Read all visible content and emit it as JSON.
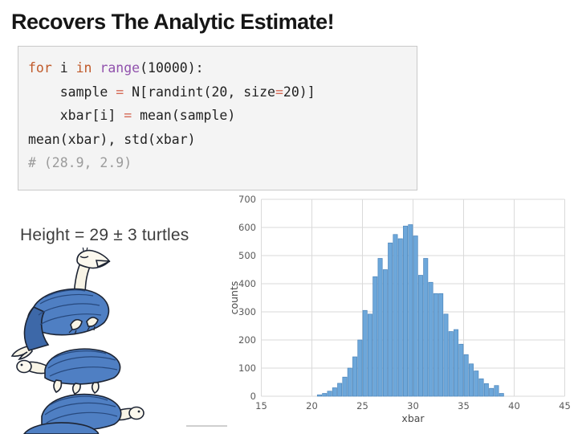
{
  "slide": {
    "title": "Recovers The Analytic Estimate!",
    "annotation": "Height = 29 ± 3 turtles"
  },
  "code_block": {
    "lines": [
      [
        {
          "t": "for",
          "c": "kw"
        },
        {
          "t": " i ",
          "c": "plain"
        },
        {
          "t": "in",
          "c": "kw"
        },
        {
          "t": " ",
          "c": "plain"
        },
        {
          "t": "range",
          "c": "fn"
        },
        {
          "t": "(10000):",
          "c": "plain"
        }
      ],
      [
        {
          "t": "    sample ",
          "c": "plain"
        },
        {
          "t": "=",
          "c": "op"
        },
        {
          "t": " N[randint(20, size",
          "c": "plain"
        },
        {
          "t": "=",
          "c": "op"
        },
        {
          "t": "20)]",
          "c": "plain"
        }
      ],
      [
        {
          "t": "    xbar[i] ",
          "c": "plain"
        },
        {
          "t": "=",
          "c": "op"
        },
        {
          "t": " mean(sample)",
          "c": "plain"
        }
      ],
      [
        {
          "t": "mean(xbar), std(xbar)",
          "c": "plain"
        }
      ],
      [
        {
          "t": "# (28.9, 2.9)",
          "c": "comment"
        }
      ]
    ]
  },
  "chart_data": {
    "type": "bar",
    "subtype": "histogram",
    "title": "",
    "xlabel": "xbar",
    "ylabel": "counts",
    "xlim": [
      15,
      45
    ],
    "ylim": [
      0,
      700
    ],
    "x_ticks": [
      15,
      20,
      25,
      30,
      35,
      40,
      45
    ],
    "y_ticks": [
      0,
      100,
      200,
      300,
      400,
      500,
      600,
      700
    ],
    "grid": true,
    "bin_start": 20.5,
    "bin_width": 0.5,
    "counts": [
      5,
      10,
      18,
      30,
      46,
      68,
      100,
      140,
      200,
      305,
      292,
      425,
      490,
      450,
      545,
      575,
      560,
      605,
      610,
      570,
      430,
      490,
      405,
      365,
      365,
      292,
      230,
      237,
      185,
      148,
      115,
      90,
      62,
      45,
      28,
      38,
      10
    ],
    "bar_fill": "#6da7da",
    "bar_edge": "#4d86bb",
    "grid_color": "#dadada",
    "tick_label_color": "#5a5a5a"
  }
}
